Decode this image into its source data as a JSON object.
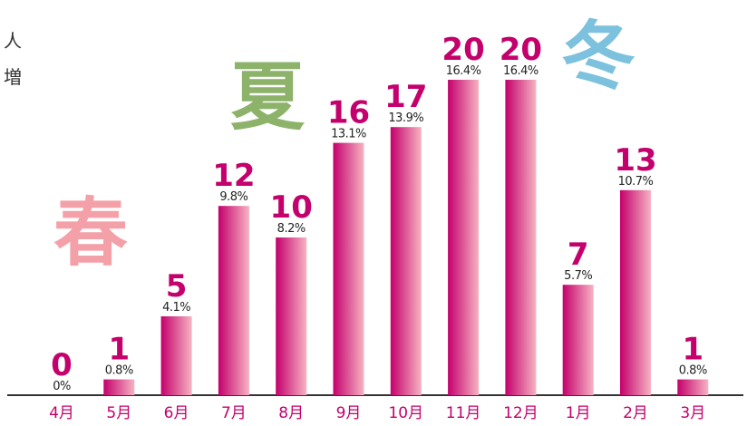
{
  "chart_data": {
    "type": "bar",
    "categories": [
      "4月",
      "5月",
      "6月",
      "7月",
      "8月",
      "9月",
      "10月",
      "11月",
      "12月",
      "1月",
      "2月",
      "3月"
    ],
    "values": [
      0,
      1,
      5,
      12,
      10,
      16,
      17,
      20,
      20,
      7,
      13,
      1
    ],
    "shares": [
      0,
      0.8,
      4.1,
      9.8,
      8.2,
      13.1,
      13.9,
      16.4,
      16.4,
      5.7,
      10.7,
      0.8
    ],
    "share_labels": [
      "0%",
      "0.8%",
      "4.1%",
      "9.8%",
      "8.2%",
      "13.1%",
      "13.9%",
      "16.4%",
      "16.4%",
      "5.7%",
      "10.7%",
      "0.8%"
    ],
    "color": "#c4006c",
    "ylim": [
      0,
      20
    ],
    "annotations": [
      {
        "text": "春",
        "color": "#f4a0a8"
      },
      {
        "text": "夏",
        "color": "#8db36a"
      },
      {
        "text": "冬",
        "color": "#7cc1dd"
      },
      {
        "text": "人",
        "color": "#333333"
      },
      {
        "text": "増",
        "color": "#333333"
      }
    ]
  }
}
